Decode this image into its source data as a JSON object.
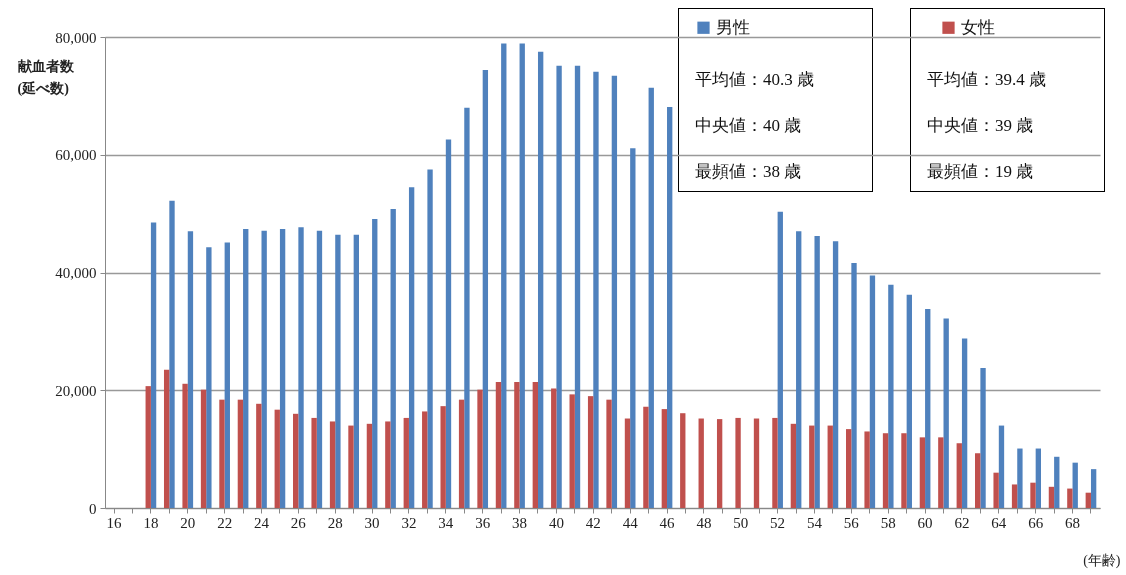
{
  "chart_data": {
    "type": "bar",
    "ylabel": "献血者数\n(延べ数)",
    "xlabel": "(年齢)",
    "categories": [
      "16",
      null,
      "18",
      null,
      "20",
      null,
      "22",
      null,
      "24",
      null,
      "26",
      null,
      "28",
      null,
      "30",
      null,
      "32",
      null,
      "34",
      null,
      "36",
      null,
      "38",
      null,
      "40",
      null,
      "42",
      null,
      "44",
      null,
      "46",
      null,
      "48",
      null,
      "50",
      null,
      "52",
      null,
      "54",
      null,
      "56",
      null,
      "58",
      null,
      "60",
      null,
      "62",
      null,
      "64",
      null,
      "66",
      null,
      "68",
      null
    ],
    "series": [
      {
        "name": "男性",
        "color": "#4f81bd",
        "values": [
          null,
          null,
          48500,
          52200,
          47000,
          44300,
          45100,
          47400,
          47100,
          47400,
          47700,
          47100,
          46400,
          46400,
          49100,
          50800,
          54500,
          57500,
          62600,
          68000,
          74400,
          78900,
          78900,
          77500,
          75100,
          75100,
          74100,
          73400,
          61100,
          71400,
          68100,
          null,
          null,
          null,
          null,
          null,
          50300,
          47000,
          46200,
          45300,
          41600,
          39500,
          37900,
          36200,
          33800,
          32200,
          28800,
          23800,
          14000,
          10100,
          10100,
          8700,
          7700,
          6600
        ]
      },
      {
        "name": "女性",
        "color": "#c0504d",
        "values": [
          null,
          null,
          20700,
          23500,
          21100,
          20100,
          18400,
          18400,
          17700,
          16700,
          16000,
          15300,
          14700,
          14000,
          14300,
          14700,
          15300,
          16400,
          17300,
          18400,
          20100,
          21400,
          21400,
          21400,
          20300,
          19300,
          19000,
          18400,
          15200,
          17200,
          16800,
          16100,
          15200,
          15100,
          15300,
          15200,
          15300,
          14300,
          14000,
          14000,
          13400,
          13000,
          12700,
          12700,
          12000,
          12000,
          11000,
          9300,
          6000,
          4000,
          4300,
          3600,
          3300,
          2600
        ]
      }
    ],
    "ylim": [
      0,
      80000
    ],
    "yticks": [
      0,
      {
        "value": 20000,
        "label": "20,000"
      },
      {
        "value": 40000,
        "label": "40,000"
      },
      {
        "value": 60000,
        "label": "60,000"
      },
      {
        "value": 80000,
        "label": "80,000"
      }
    ],
    "grid": "y",
    "legend": "top right",
    "annotations": [
      "平均値：40.3 歳",
      "中央値：40 歳",
      "最頻値：38 歳",
      "平均値：39.4 歳",
      "中央値：39 歳",
      "最頻値：19 歳"
    ]
  }
}
